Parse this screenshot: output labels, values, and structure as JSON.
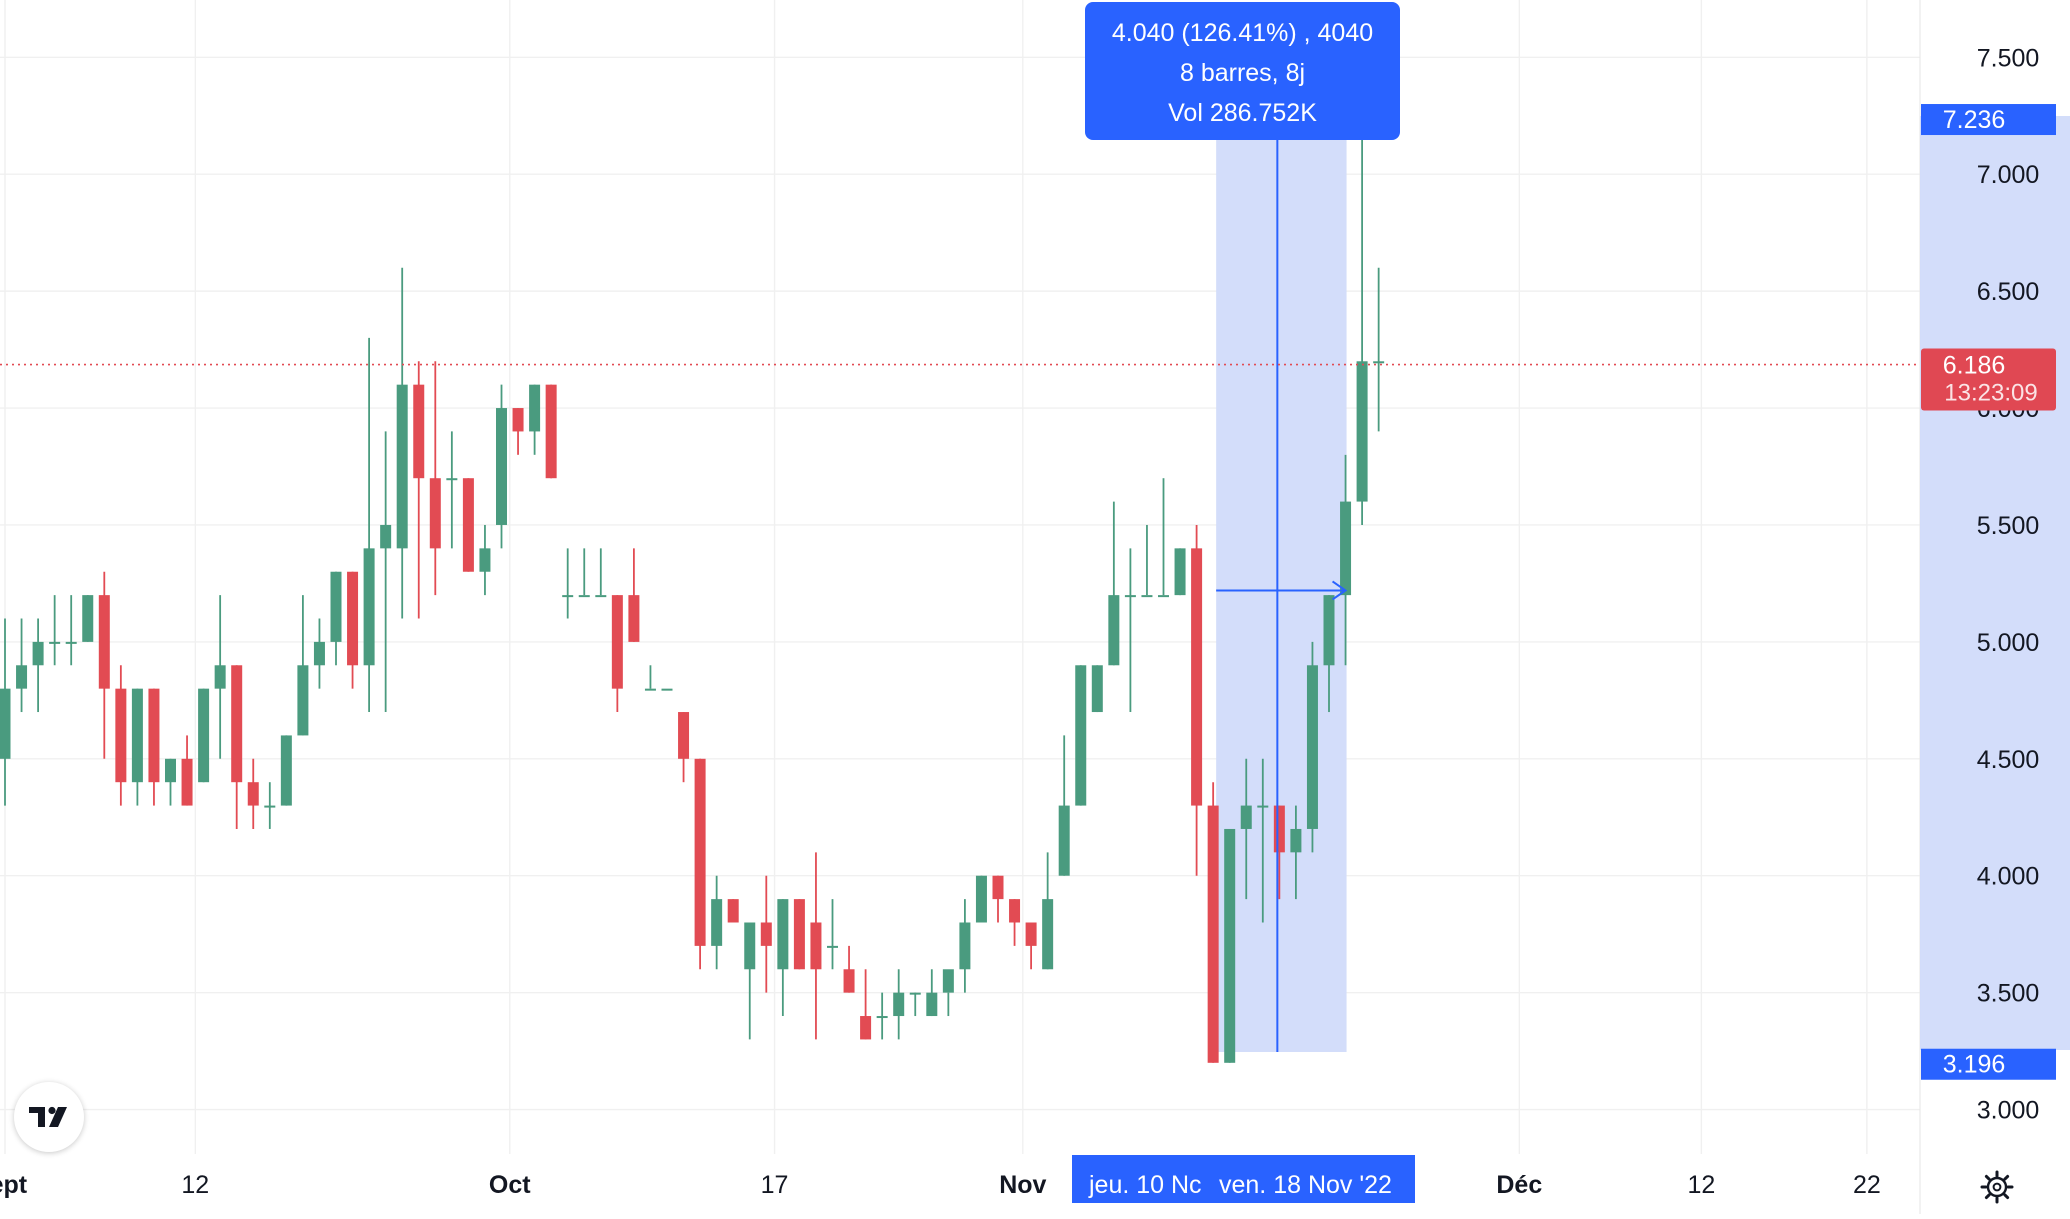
{
  "chart_data": {
    "type": "candlestick",
    "title": "",
    "y_range": [
      2.81,
      7.745
    ],
    "y_ticks": [
      3.0,
      3.5,
      4.0,
      4.5,
      5.0,
      5.5,
      6.0,
      6.5,
      7.0,
      7.5
    ],
    "y_tick_labels": [
      "3.000",
      "3.500",
      "4.000",
      "4.500",
      "5.000",
      "5.500",
      "6.000",
      "6.500",
      "7.000",
      "7.500"
    ],
    "x_labels": [
      {
        "label": "Sept",
        "bar": 0
      },
      {
        "label": "12",
        "bar": 11.5
      },
      {
        "label": "Oct",
        "bar": 30.5
      },
      {
        "label": "17",
        "bar": 46.5
      },
      {
        "label": "Nov",
        "bar": 61.5
      },
      {
        "label": "Déc",
        "bar": 91.5
      },
      {
        "label": "12",
        "bar": 102.5
      },
      {
        "label": "22",
        "bar": 112.5
      }
    ],
    "candles": [
      [
        4.5,
        4.8,
        5.1,
        4.3
      ],
      [
        4.8,
        4.9,
        5.1,
        4.7
      ],
      [
        4.9,
        5.0,
        5.1,
        4.7
      ],
      [
        5.0,
        5.0,
        5.2,
        4.9
      ],
      [
        5.0,
        5.0,
        5.2,
        4.9
      ],
      [
        5.0,
        5.2,
        5.2,
        5.0
      ],
      [
        5.2,
        4.8,
        5.3,
        4.5
      ],
      [
        4.8,
        4.4,
        4.9,
        4.3
      ],
      [
        4.4,
        4.8,
        4.8,
        4.3
      ],
      [
        4.8,
        4.4,
        4.8,
        4.3
      ],
      [
        4.4,
        4.5,
        4.5,
        4.3
      ],
      [
        4.5,
        4.3,
        4.6,
        4.3
      ],
      [
        4.4,
        4.8,
        4.8,
        4.4
      ],
      [
        4.8,
        4.9,
        5.2,
        4.5
      ],
      [
        4.9,
        4.4,
        4.9,
        4.2
      ],
      [
        4.4,
        4.3,
        4.5,
        4.2
      ],
      [
        4.3,
        4.3,
        4.4,
        4.2
      ],
      [
        4.3,
        4.6,
        4.6,
        4.3
      ],
      [
        4.6,
        4.9,
        5.2,
        4.6
      ],
      [
        4.9,
        5.0,
        5.1,
        4.8
      ],
      [
        5.0,
        5.3,
        5.3,
        4.9
      ],
      [
        5.3,
        4.9,
        5.3,
        4.8
      ],
      [
        4.9,
        5.4,
        6.3,
        4.7
      ],
      [
        5.4,
        5.5,
        5.9,
        4.7
      ],
      [
        5.4,
        6.1,
        6.6,
        5.1
      ],
      [
        6.1,
        5.7,
        6.2,
        5.1
      ],
      [
        5.7,
        5.4,
        6.2,
        5.2
      ],
      [
        5.7,
        5.7,
        5.9,
        5.4
      ],
      [
        5.7,
        5.3,
        5.7,
        5.3
      ],
      [
        5.3,
        5.4,
        5.5,
        5.2
      ],
      [
        5.5,
        6.0,
        6.1,
        5.4
      ],
      [
        6.0,
        5.9,
        6.0,
        5.8
      ],
      [
        5.9,
        6.1,
        6.1,
        5.8
      ],
      [
        6.1,
        5.7,
        6.1,
        5.7
      ],
      [
        5.2,
        5.2,
        5.4,
        5.1
      ],
      [
        5.2,
        5.2,
        5.4,
        5.2
      ],
      [
        5.2,
        5.2,
        5.4,
        5.2
      ],
      [
        5.2,
        4.8,
        5.2,
        4.7
      ],
      [
        5.2,
        5.0,
        5.4,
        5.0
      ],
      [
        4.8,
        4.8,
        4.9,
        4.8
      ],
      [
        4.8,
        4.8,
        4.8,
        4.8
      ],
      [
        4.7,
        4.5,
        4.7,
        4.4
      ],
      [
        4.5,
        3.7,
        4.5,
        3.6
      ],
      [
        3.7,
        3.9,
        4.0,
        3.6
      ],
      [
        3.9,
        3.8,
        3.9,
        3.8
      ],
      [
        3.6,
        3.8,
        3.8,
        3.3
      ],
      [
        3.8,
        3.7,
        4.0,
        3.5
      ],
      [
        3.6,
        3.9,
        3.9,
        3.4
      ],
      [
        3.9,
        3.6,
        3.9,
        3.6
      ],
      [
        3.8,
        3.6,
        4.1,
        3.3
      ],
      [
        3.7,
        3.7,
        3.9,
        3.6
      ],
      [
        3.6,
        3.5,
        3.7,
        3.5
      ],
      [
        3.4,
        3.3,
        3.6,
        3.3
      ],
      [
        3.4,
        3.4,
        3.5,
        3.3
      ],
      [
        3.4,
        3.5,
        3.6,
        3.3
      ],
      [
        3.5,
        3.5,
        3.5,
        3.4
      ],
      [
        3.4,
        3.5,
        3.6,
        3.4
      ],
      [
        3.5,
        3.6,
        3.5,
        3.4
      ],
      [
        3.6,
        3.8,
        3.9,
        3.5
      ],
      [
        3.8,
        4.0,
        4.0,
        3.8
      ],
      [
        4.0,
        3.9,
        4.0,
        3.8
      ],
      [
        3.9,
        3.8,
        3.9,
        3.7
      ],
      [
        3.8,
        3.7,
        3.8,
        3.6
      ],
      [
        3.6,
        3.9,
        4.1,
        3.6
      ],
      [
        4.0,
        4.3,
        4.6,
        4.0
      ],
      [
        4.3,
        4.9,
        4.9,
        4.3
      ],
      [
        4.7,
        4.9,
        4.9,
        4.7
      ],
      [
        4.9,
        5.2,
        5.6,
        4.9
      ],
      [
        5.2,
        5.2,
        5.4,
        4.7
      ],
      [
        5.2,
        5.2,
        5.5,
        5.2
      ],
      [
        5.2,
        5.2,
        5.7,
        5.2
      ],
      [
        5.2,
        5.4,
        5.4,
        5.2
      ],
      [
        5.4,
        4.3,
        5.5,
        4.0
      ],
      [
        4.3,
        3.2,
        4.4,
        3.2
      ],
      [
        3.2,
        4.2,
        4.2,
        3.2
      ],
      [
        4.2,
        4.3,
        4.5,
        3.9
      ],
      [
        4.3,
        4.3,
        4.5,
        3.8
      ],
      [
        4.3,
        4.1,
        4.3,
        3.9
      ],
      [
        4.1,
        4.2,
        4.3,
        3.9
      ],
      [
        4.2,
        4.9,
        5.0,
        4.1
      ],
      [
        4.9,
        5.2,
        5.2,
        4.7
      ],
      [
        5.2,
        5.6,
        5.8,
        4.9
      ],
      [
        5.6,
        6.2,
        7.2,
        5.5
      ],
      [
        6.2,
        6.2,
        6.6,
        5.9
      ]
    ],
    "last_price_label": "6.186",
    "countdown_label": "13:23:09",
    "measure_top_label": "7.236",
    "measure_bottom_label": "3.196",
    "measure_date_labels": [
      "jeu. 10 Nc",
      "ven. 18 Nov '22"
    ],
    "tooltip": {
      "line1": "4.040 (126.41%) , 4040",
      "line2": "8 barres, 8j",
      "line3": "Vol 286.752K"
    },
    "colors": {
      "up": "#4a9b7f",
      "down": "#e24b53",
      "measure_fill": "#d1dbfa",
      "measure_line": "#2962ff",
      "price_tag": "#e04853",
      "grid": "#f0f0f0"
    }
  },
  "branding": {
    "logo_icon": "tradingview-logo-icon",
    "settings_icon": "gear-icon"
  }
}
